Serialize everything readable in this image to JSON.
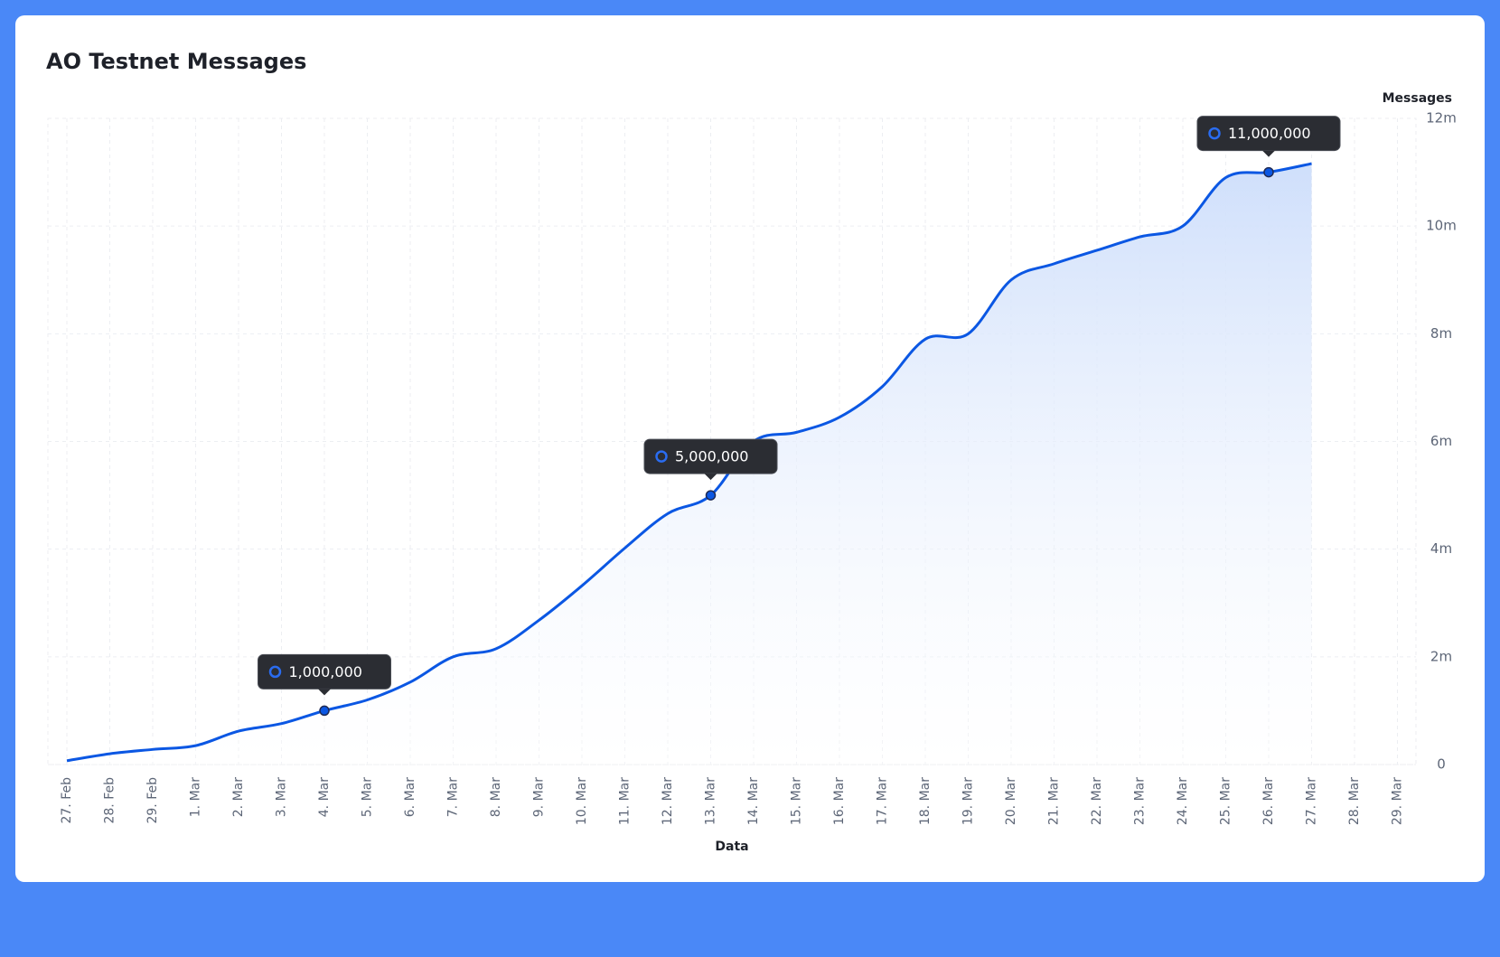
{
  "chart_data": {
    "type": "line",
    "title": "AO Testnet Messages",
    "xlabel": "Data",
    "ylabel": "Messages",
    "categories": [
      "27. Feb",
      "28. Feb",
      "29. Feb",
      "1. Mar",
      "2. Mar",
      "3. Mar",
      "4. Mar",
      "5. Mar",
      "6. Mar",
      "7. Mar",
      "8. Mar",
      "9. Mar",
      "10. Mar",
      "11. Mar",
      "12. Mar",
      "13. Mar",
      "14. Mar",
      "15. Mar",
      "16. Mar",
      "17. Mar",
      "18. Mar",
      "19. Mar",
      "20. Mar",
      "21. Mar",
      "22. Mar",
      "23. Mar",
      "24. Mar",
      "25. Mar",
      "26. Mar",
      "27. Mar",
      "28. Mar",
      "29. Mar"
    ],
    "series": [
      {
        "name": "Messages",
        "color": "#0b57e3",
        "values": [
          70000,
          200000,
          280000,
          350000,
          620000,
          760000,
          1000000,
          1200000,
          1530000,
          2000000,
          2150000,
          2680000,
          3320000,
          4020000,
          4660000,
          5000000,
          6000000,
          6170000,
          6450000,
          7020000,
          7900000,
          8000000,
          9000000,
          9300000,
          9550000,
          9800000,
          10000000,
          10900000,
          11000000,
          11160000,
          null,
          null
        ]
      }
    ],
    "ylim": [
      0,
      12000000
    ],
    "yticks": [
      0,
      {
        "value": 2000000,
        "label": "2m"
      },
      {
        "value": 4000000,
        "label": "4m"
      },
      {
        "value": 6000000,
        "label": "6m"
      },
      {
        "value": 8000000,
        "label": "8m"
      },
      {
        "value": 10000000,
        "label": "10m"
      },
      {
        "value": 12000000,
        "label": "12m"
      }
    ],
    "grid": true,
    "annotations": [
      {
        "x": "4. Mar",
        "value": 1000000,
        "label": "1,000,000"
      },
      {
        "x": "13. Mar",
        "value": 5000000,
        "label": "5,000,000"
      },
      {
        "x": "26. Mar",
        "value": 11000000,
        "label": "11,000,000"
      }
    ]
  }
}
